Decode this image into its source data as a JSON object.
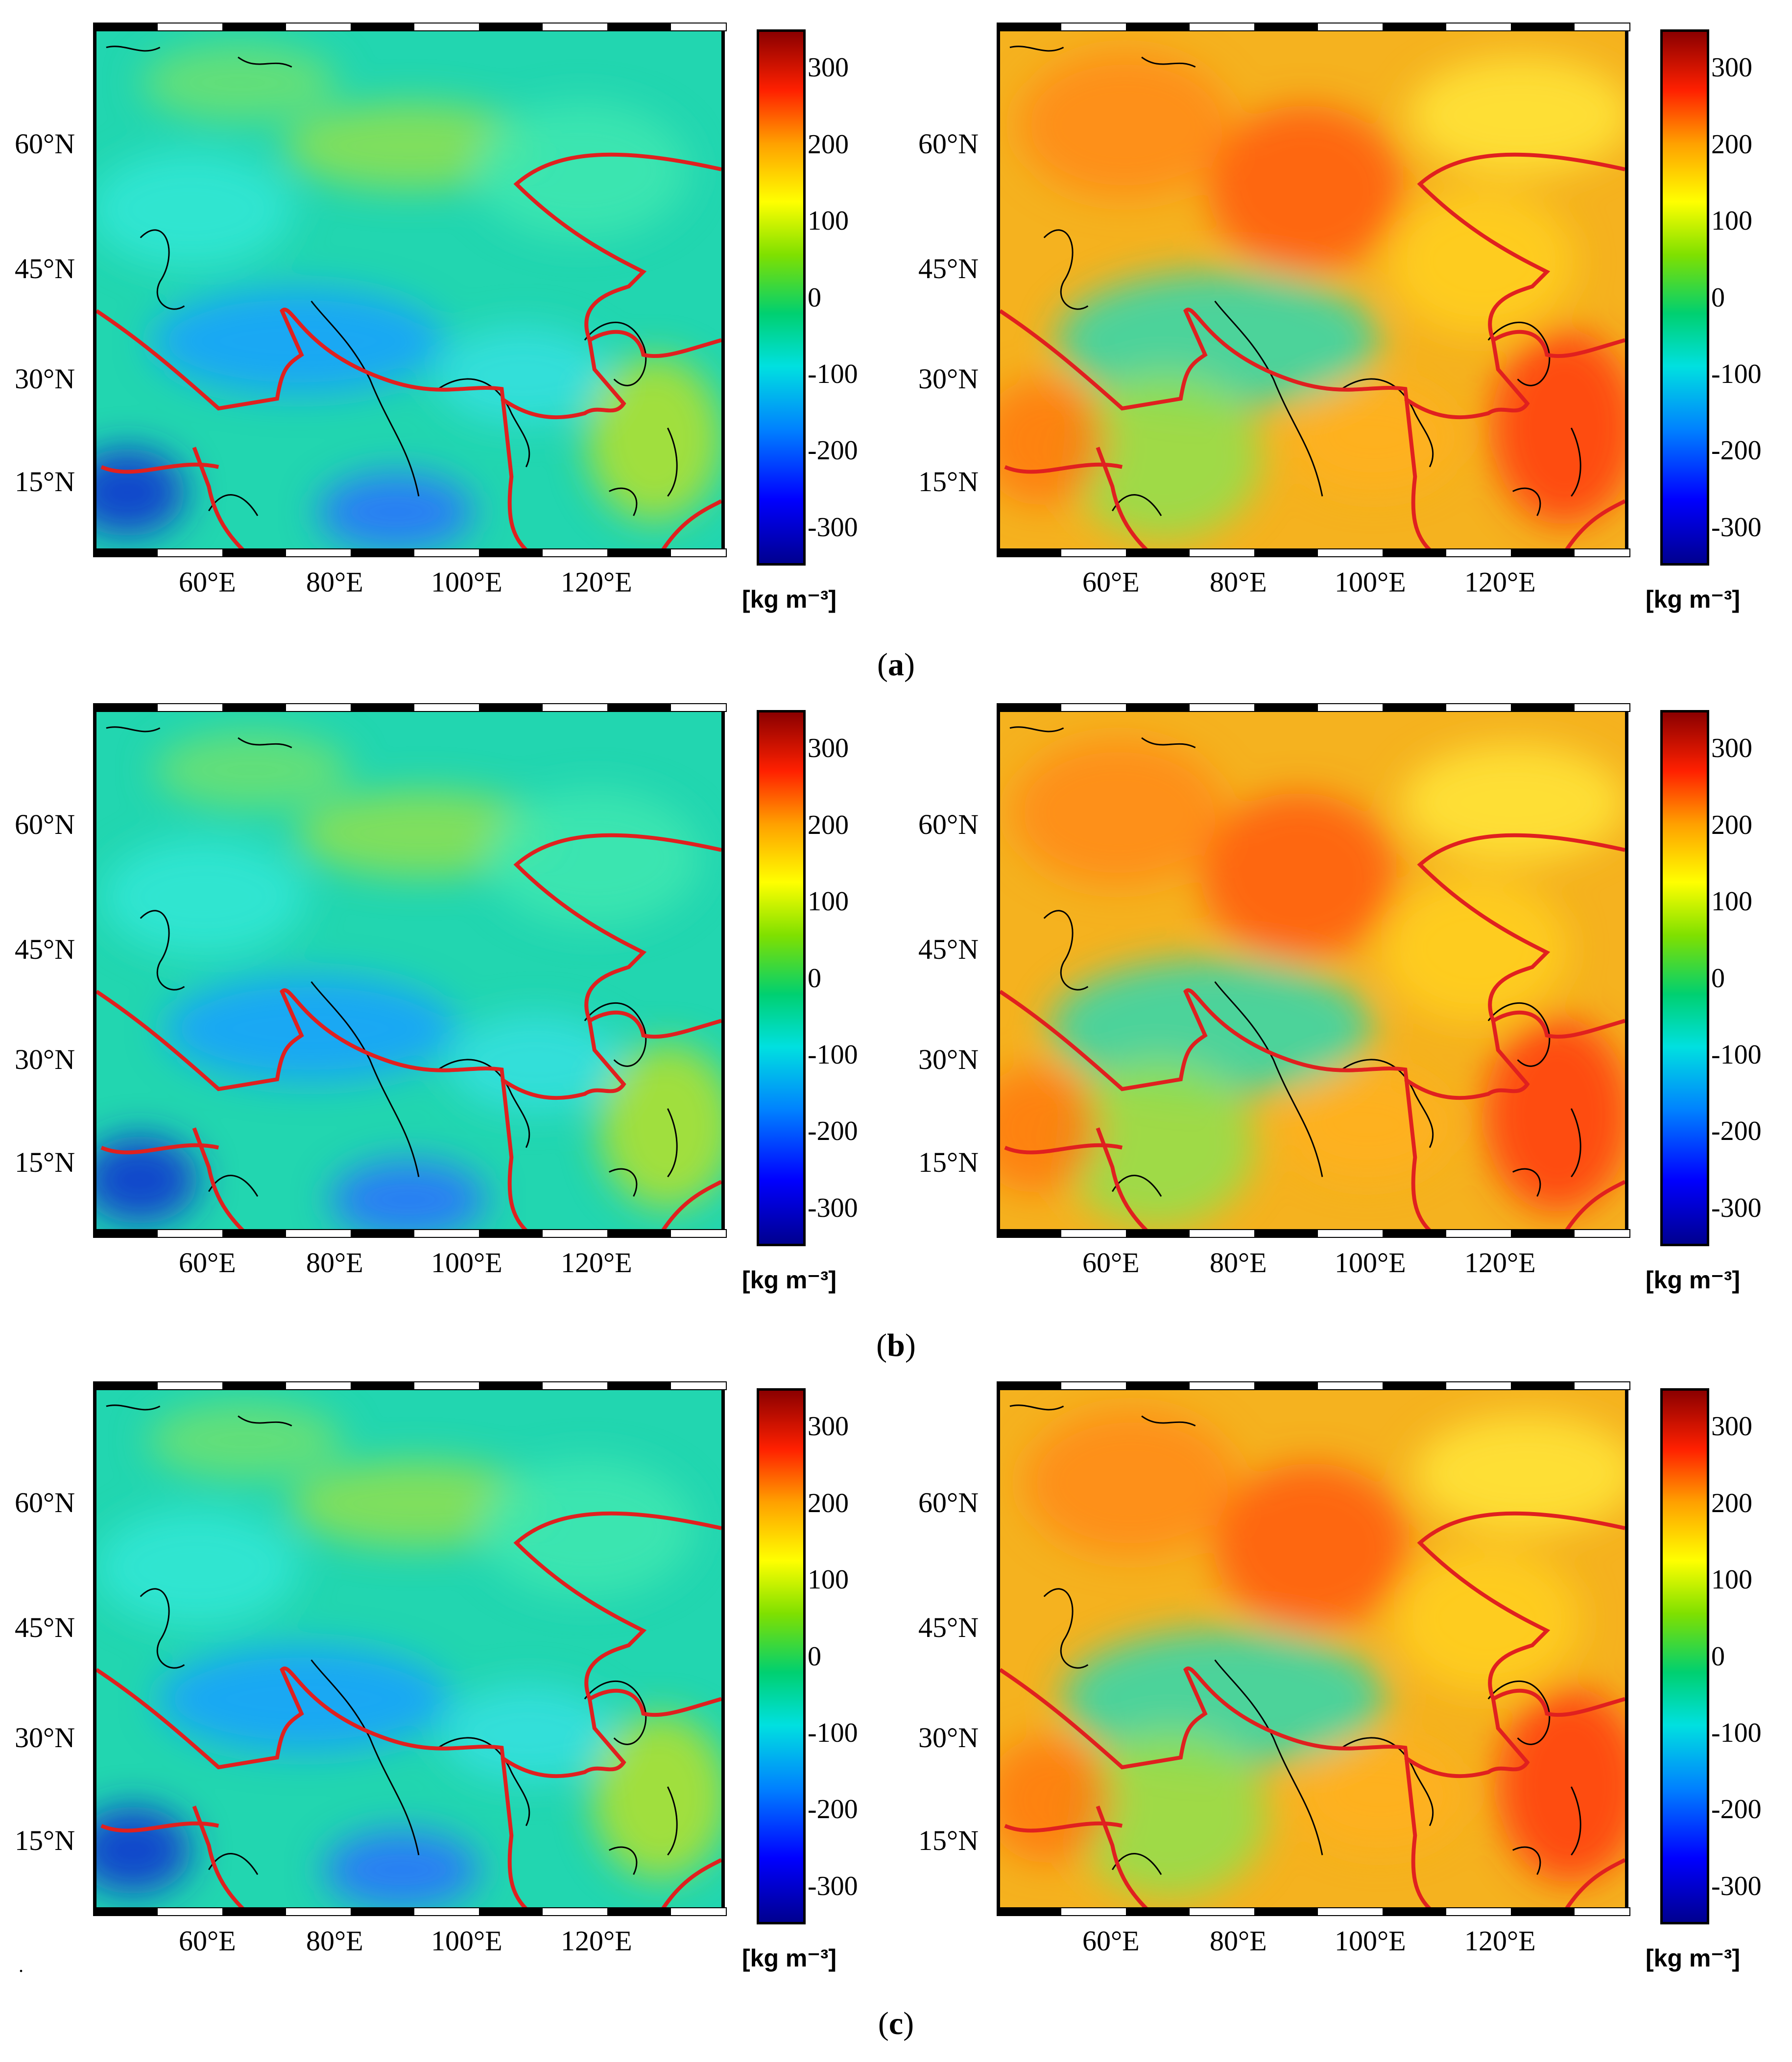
{
  "figure": {
    "lat_labels": [
      "60°N",
      "45°N",
      "30°N",
      "15°N"
    ],
    "lon_labels": [
      "60°E",
      "80°E",
      "100°E",
      "120°E"
    ],
    "colorbar": {
      "ticks": [
        "300",
        "200",
        "100",
        "0",
        "-100",
        "-200",
        "-300"
      ],
      "unit": "[kg m⁻³]",
      "range": [
        -350,
        350
      ]
    },
    "rows": [
      {
        "caption_letter": "a",
        "left_tone": "cool",
        "right_tone": "warm"
      },
      {
        "caption_letter": "b",
        "left_tone": "cool",
        "right_tone": "warm"
      },
      {
        "caption_letter": "c",
        "left_tone": "cool",
        "right_tone": "warm"
      }
    ]
  },
  "colors": {
    "boundary": "#e0201f",
    "coastline": "#000000",
    "cool_base": "#22d6b0",
    "warm_base": "#f5b21f"
  }
}
